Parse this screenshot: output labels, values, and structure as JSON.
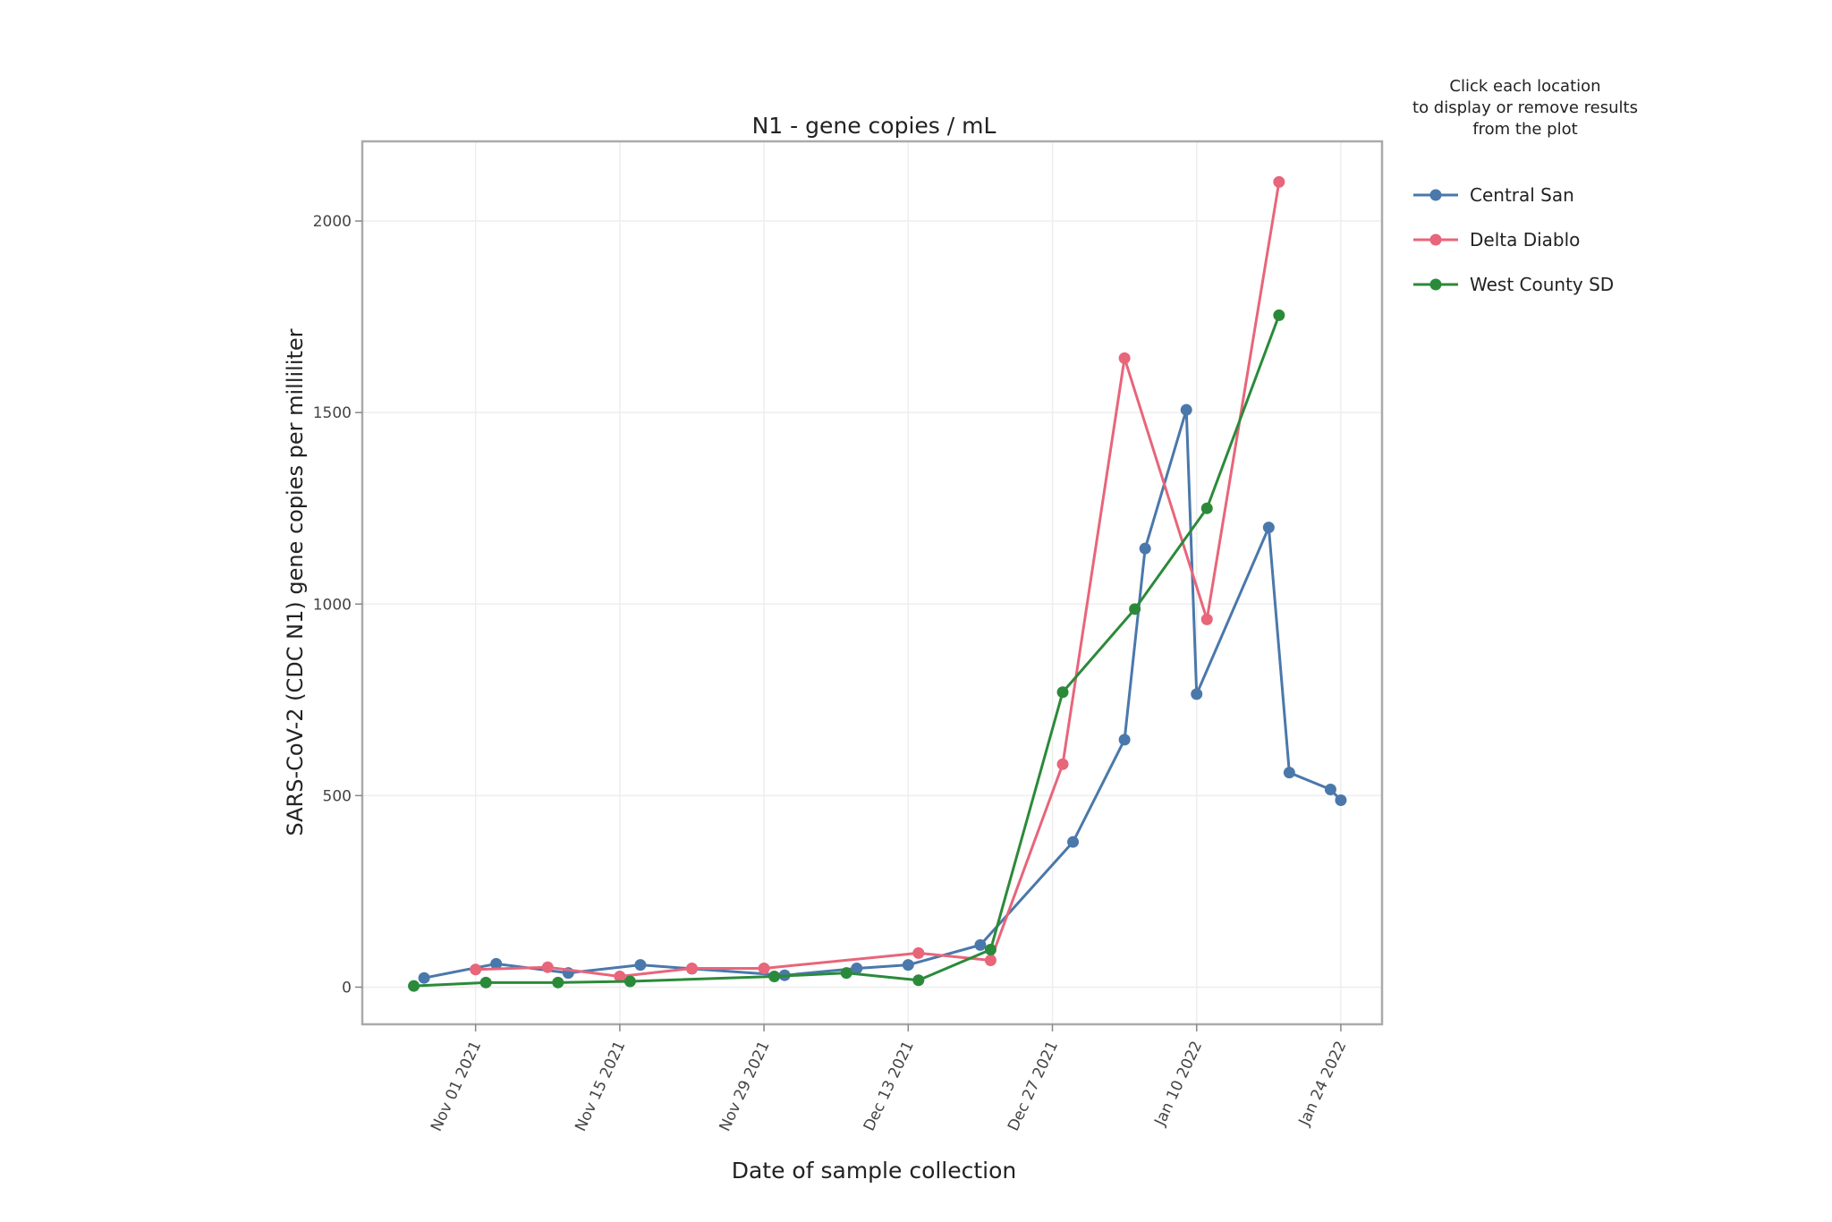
{
  "chart_data": {
    "type": "line",
    "title": "N1 - gene copies / mL",
    "xlabel": "Date of sample collection",
    "ylabel": "SARS-CoV-2 (CDC N1) gene copies per milliliter",
    "xlim": [
      "2021-10-21",
      "2022-01-28"
    ],
    "ylim": [
      -97,
      2208
    ],
    "x_ticks": [
      "Nov 01 2021",
      "Nov 15 2021",
      "Nov 29 2021",
      "Dec 13 2021",
      "Dec 27 2021",
      "Jan 10 2022",
      "Jan 24 2022"
    ],
    "x_tick_dates": [
      "2021-11-01",
      "2021-11-15",
      "2021-11-29",
      "2021-12-13",
      "2021-12-27",
      "2022-01-10",
      "2022-01-24"
    ],
    "y_ticks": [
      0,
      500,
      1000,
      1500,
      2000
    ],
    "grid": true,
    "legend_placement": "right",
    "legend_title": [
      "Click each location",
      "to display or remove results",
      "from the plot"
    ],
    "series": [
      {
        "name": "Central San",
        "color": "#4a78ab",
        "x": [
          "2021-10-27",
          "2021-11-03",
          "2021-11-10",
          "2021-11-17",
          "2021-11-22",
          "2021-12-01",
          "2021-12-08",
          "2021-12-13",
          "2021-12-20",
          "2021-12-29",
          "2022-01-03",
          "2022-01-05",
          "2022-01-09",
          "2022-01-10",
          "2022-01-17",
          "2022-01-19",
          "2022-01-23",
          "2022-01-24"
        ],
        "y": [
          24,
          61,
          37,
          58,
          48,
          31,
          49,
          58,
          110,
          379,
          646,
          1145,
          1507,
          765,
          1200,
          560,
          516,
          488
        ]
      },
      {
        "name": "Delta Diablo",
        "color": "#e8657a",
        "x": [
          "2021-11-01",
          "2021-11-08",
          "2021-11-15",
          "2021-11-22",
          "2021-11-29",
          "2021-12-14",
          "2021-12-21",
          "2021-12-28",
          "2022-01-03",
          "2022-01-11",
          "2022-01-18"
        ],
        "y": [
          46,
          52,
          28,
          49,
          49,
          89,
          70,
          582,
          1642,
          960,
          2102
        ]
      },
      {
        "name": "West County SD",
        "color": "#2b8a3a",
        "x": [
          "2021-10-26",
          "2021-11-02",
          "2021-11-09",
          "2021-11-16",
          "2021-11-30",
          "2021-12-07",
          "2021-12-14",
          "2021-12-21",
          "2021-12-28",
          "2022-01-04",
          "2022-01-11",
          "2022-01-18"
        ],
        "y": [
          3,
          12,
          12,
          15,
          28,
          37,
          18,
          98,
          770,
          987,
          1250,
          1754
        ]
      }
    ]
  }
}
